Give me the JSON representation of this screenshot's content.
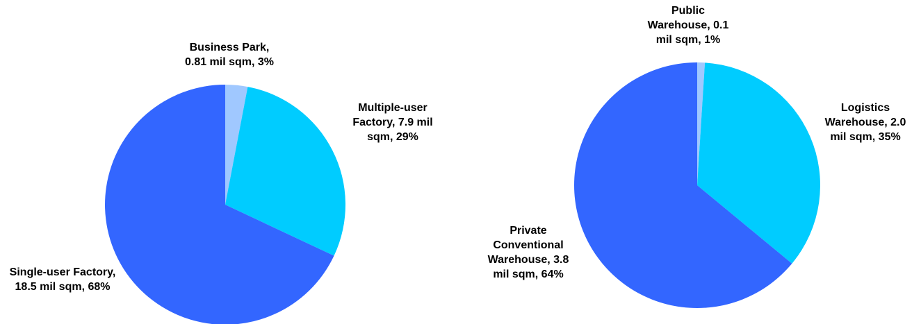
{
  "chart_data": [
    {
      "type": "pie",
      "values": [
        3,
        29,
        68
      ],
      "value_labels": [
        "Business Park, 0.81 mil sqm, 3%",
        "Multiple-user Factory, 7.9 mil sqm, 29%",
        "Single-user Factory, 18.5 mil sqm, 68%"
      ],
      "colors": [
        "#a0c8ff",
        "#00ccff",
        "#3366ff"
      ]
    },
    {
      "type": "pie",
      "values": [
        1,
        35,
        64
      ],
      "value_labels": [
        "Public Warehouse, 0.1 mil sqm, 1%",
        "Logistics Warehouse, 2.0 mil sqm, 35%",
        "Private Conventional Warehouse, 3.8 mil sqm, 64%"
      ],
      "colors": [
        "#a0c8ff",
        "#00ccff",
        "#3366ff"
      ]
    }
  ]
}
